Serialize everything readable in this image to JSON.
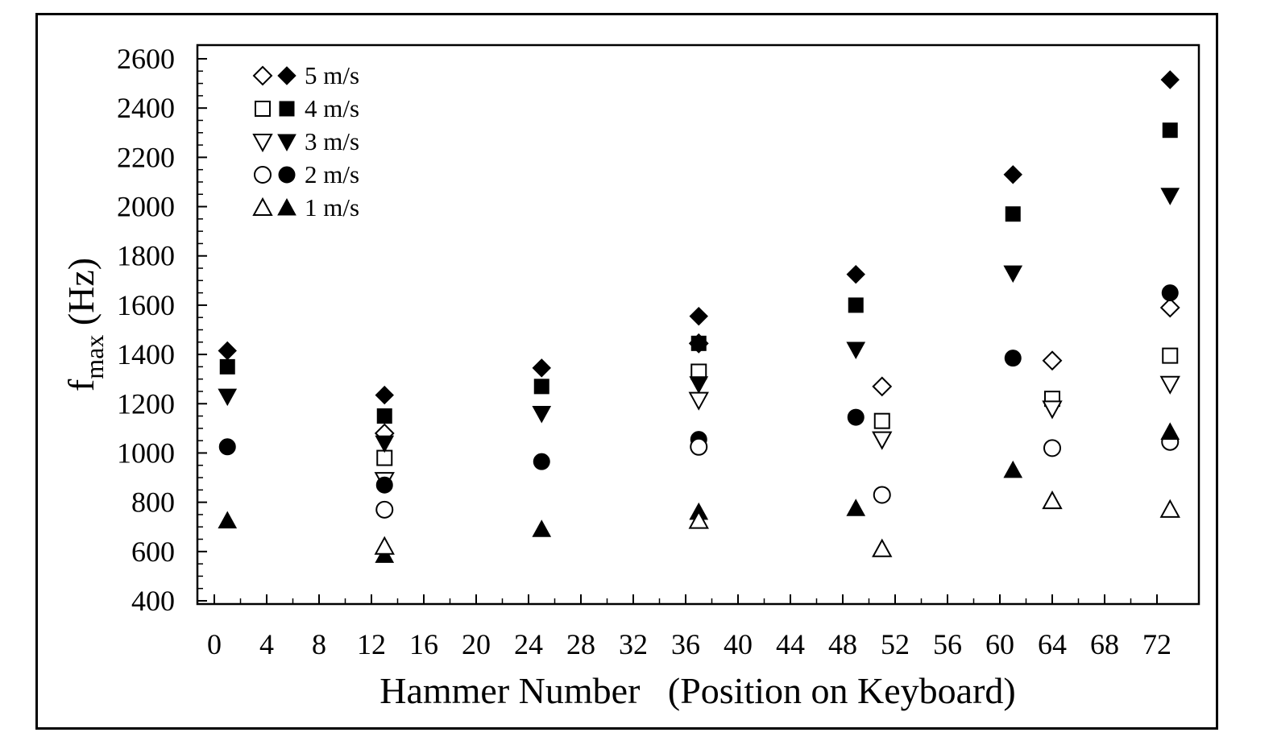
{
  "chart_data": {
    "type": "scatter",
    "xlabel": "Hammer Number   (Position on Keyboard)",
    "ylabel_main": "f",
    "ylabel_sub": "max",
    "ylabel_unit": " (Hz)",
    "xlim": [
      -1,
      75
    ],
    "ylim": [
      400,
      2600
    ],
    "xticks": [
      0,
      4,
      8,
      12,
      16,
      20,
      24,
      28,
      32,
      36,
      40,
      44,
      48,
      52,
      56,
      60,
      64,
      68,
      72
    ],
    "yticks": [
      400,
      600,
      800,
      1000,
      1200,
      1400,
      1600,
      1800,
      2000,
      2200,
      2400,
      2600
    ],
    "grid": false,
    "legend_position": "top-left",
    "series": [
      {
        "name": "5 m/s",
        "shape": "diamond",
        "filled": true,
        "x": [
          1,
          13,
          25,
          37,
          49,
          61,
          73
        ],
        "y": [
          1415,
          1235,
          1345,
          1555,
          1725,
          2130,
          2515
        ]
      },
      {
        "name": "5 m/s",
        "shape": "diamond",
        "filled": false,
        "x": [
          13,
          37,
          51,
          64,
          73
        ],
        "y": [
          1080,
          1445,
          1270,
          1375,
          1590
        ]
      },
      {
        "name": "4 m/s",
        "shape": "square",
        "filled": true,
        "x": [
          1,
          13,
          25,
          37,
          49,
          61,
          73
        ],
        "y": [
          1350,
          1150,
          1270,
          1445,
          1600,
          1970,
          2310
        ]
      },
      {
        "name": "4 m/s",
        "shape": "square",
        "filled": false,
        "x": [
          13,
          37,
          51,
          64,
          73
        ],
        "y": [
          980,
          1330,
          1130,
          1220,
          1395
        ]
      },
      {
        "name": "3 m/s",
        "shape": "triangle-down",
        "filled": true,
        "x": [
          1,
          13,
          25,
          37,
          49,
          61,
          73
        ],
        "y": [
          1230,
          1040,
          1160,
          1280,
          1420,
          1730,
          2045
        ]
      },
      {
        "name": "3 m/s",
        "shape": "triangle-down",
        "filled": false,
        "x": [
          13,
          37,
          51,
          64,
          73
        ],
        "y": [
          890,
          1215,
          1055,
          1180,
          1280
        ]
      },
      {
        "name": "2 m/s",
        "shape": "circle",
        "filled": true,
        "x": [
          1,
          13,
          25,
          37,
          49,
          61,
          73
        ],
        "y": [
          1025,
          870,
          965,
          1055,
          1145,
          1385,
          1650
        ]
      },
      {
        "name": "2 m/s",
        "shape": "circle",
        "filled": false,
        "x": [
          13,
          37,
          51,
          64,
          73
        ],
        "y": [
          770,
          1025,
          830,
          1020,
          1045
        ]
      },
      {
        "name": "1 m/s",
        "shape": "triangle-up",
        "filled": true,
        "x": [
          1,
          13,
          25,
          37,
          49,
          61,
          73
        ],
        "y": [
          725,
          585,
          690,
          760,
          775,
          930,
          1085
        ]
      },
      {
        "name": "1 m/s",
        "shape": "triangle-up",
        "filled": false,
        "x": [
          13,
          37,
          51,
          64,
          73
        ],
        "y": [
          620,
          725,
          610,
          805,
          770
        ]
      }
    ],
    "legend": [
      {
        "label": "5 m/s",
        "shape": "diamond"
      },
      {
        "label": "4 m/s",
        "shape": "square"
      },
      {
        "label": "3 m/s",
        "shape": "triangle-down"
      },
      {
        "label": "2 m/s",
        "shape": "circle"
      },
      {
        "label": "1 m/s",
        "shape": "triangle-up"
      }
    ]
  }
}
